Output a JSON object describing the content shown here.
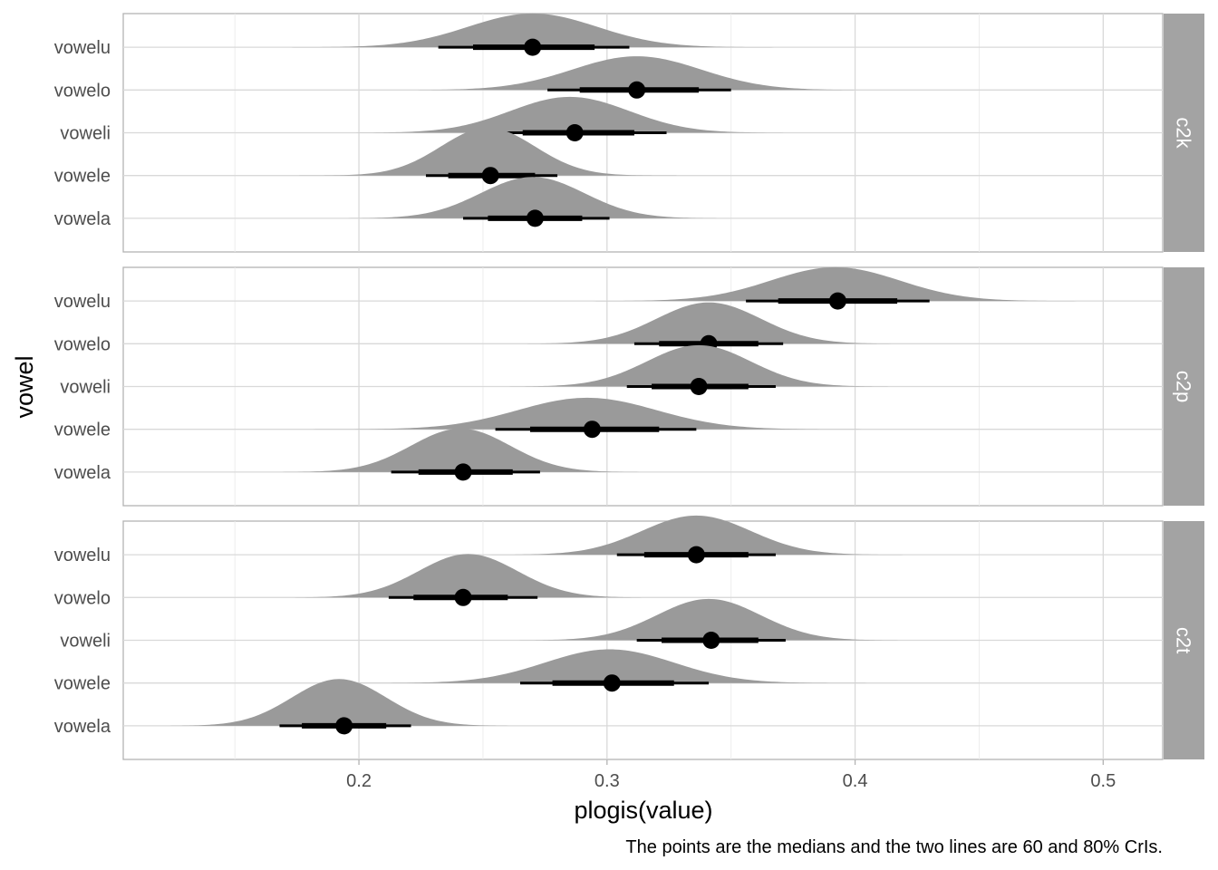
{
  "chart_data": {
    "type": "halfeye",
    "xlabel": "plogis(value)",
    "ylabel": "vowel",
    "caption": "The points are the medians and the two lines are 60 and 80% CrIs.",
    "xlim": [
      0.105,
      0.524
    ],
    "x_ticks": [
      0.2,
      0.3,
      0.4,
      0.5
    ],
    "x_tick_labels": [
      "0.2",
      "0.3",
      "0.4",
      "0.5"
    ],
    "x_minor_ticks": [
      0.15,
      0.25,
      0.35,
      0.45
    ],
    "categories": [
      "vowela",
      "vowele",
      "voweli",
      "vowelo",
      "vowelu"
    ],
    "grid": true,
    "panels": [
      {
        "name": "c2k",
        "series": [
          {
            "name": "vowelu",
            "median": 0.27,
            "ci60": [
              0.246,
              0.295
            ],
            "ci80": [
              0.232,
              0.309
            ],
            "peak": 0.27,
            "sd": 0.026,
            "height": 0.62
          },
          {
            "name": "vowelo",
            "median": 0.312,
            "ci60": [
              0.289,
              0.337
            ],
            "ci80": [
              0.276,
              0.35
            ],
            "peak": 0.312,
            "sd": 0.026,
            "height": 0.62
          },
          {
            "name": "voweli",
            "median": 0.287,
            "ci60": [
              0.266,
              0.311
            ],
            "ci80": [
              0.254,
              0.324
            ],
            "peak": 0.285,
            "sd": 0.024,
            "height": 0.66
          },
          {
            "name": "vowele",
            "median": 0.253,
            "ci60": [
              0.236,
              0.271
            ],
            "ci80": [
              0.227,
              0.28
            ],
            "peak": 0.252,
            "sd": 0.019,
            "height": 0.88
          },
          {
            "name": "vowela",
            "median": 0.271,
            "ci60": [
              0.252,
              0.29
            ],
            "ci80": [
              0.242,
              0.301
            ],
            "peak": 0.27,
            "sd": 0.021,
            "height": 0.76
          }
        ]
      },
      {
        "name": "c2p",
        "series": [
          {
            "name": "vowelu",
            "median": 0.393,
            "ci60": [
              0.369,
              0.417
            ],
            "ci80": [
              0.356,
              0.43
            ],
            "peak": 0.392,
            "sd": 0.026,
            "height": 0.62
          },
          {
            "name": "vowelo",
            "median": 0.341,
            "ci60": [
              0.321,
              0.361
            ],
            "ci80": [
              0.311,
              0.371
            ],
            "peak": 0.341,
            "sd": 0.021,
            "height": 0.76
          },
          {
            "name": "voweli",
            "median": 0.337,
            "ci60": [
              0.318,
              0.357
            ],
            "ci80": [
              0.308,
              0.368
            ],
            "peak": 0.337,
            "sd": 0.021,
            "height": 0.76
          },
          {
            "name": "vowele",
            "median": 0.294,
            "ci60": [
              0.269,
              0.321
            ],
            "ci80": [
              0.255,
              0.336
            ],
            "peak": 0.292,
            "sd": 0.028,
            "height": 0.58
          },
          {
            "name": "vowela",
            "median": 0.242,
            "ci60": [
              0.224,
              0.262
            ],
            "ci80": [
              0.213,
              0.273
            ],
            "peak": 0.241,
            "sd": 0.02,
            "height": 0.8
          }
        ]
      },
      {
        "name": "c2t",
        "series": [
          {
            "name": "vowelu",
            "median": 0.336,
            "ci60": [
              0.315,
              0.357
            ],
            "ci80": [
              0.304,
              0.368
            ],
            "peak": 0.336,
            "sd": 0.022,
            "height": 0.72
          },
          {
            "name": "vowelo",
            "median": 0.242,
            "ci60": [
              0.222,
              0.26
            ],
            "ci80": [
              0.212,
              0.272
            ],
            "peak": 0.244,
            "sd": 0.02,
            "height": 0.8
          },
          {
            "name": "voweli",
            "median": 0.342,
            "ci60": [
              0.322,
              0.361
            ],
            "ci80": [
              0.312,
              0.372
            ],
            "peak": 0.341,
            "sd": 0.021,
            "height": 0.76
          },
          {
            "name": "vowele",
            "median": 0.302,
            "ci60": [
              0.278,
              0.327
            ],
            "ci80": [
              0.265,
              0.341
            ],
            "peak": 0.301,
            "sd": 0.026,
            "height": 0.62
          },
          {
            "name": "vowela",
            "median": 0.194,
            "ci60": [
              0.177,
              0.211
            ],
            "ci80": [
              0.168,
              0.221
            ],
            "peak": 0.192,
            "sd": 0.019,
            "height": 0.86
          }
        ]
      }
    ]
  }
}
